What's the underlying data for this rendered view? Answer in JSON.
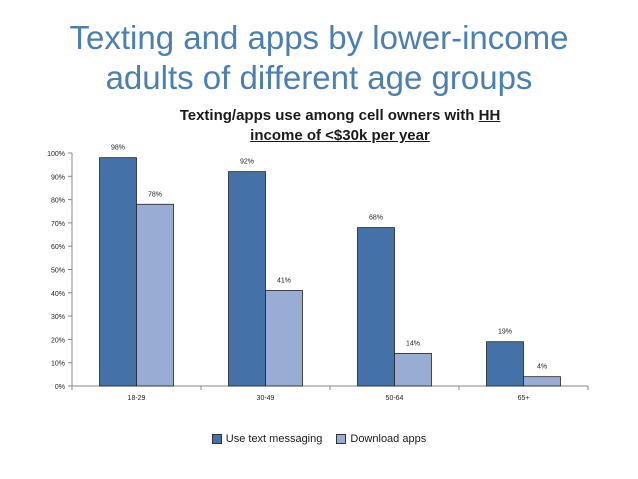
{
  "slide": {
    "title_line1": "Texting and apps by lower-income",
    "title_line2": "adults of different age groups"
  },
  "chart_data": {
    "type": "bar",
    "title_part1": "Texting/apps use among cell owners with ",
    "title_underlined": "HH",
    "title_part2": "income of <$30k per year",
    "categories": [
      "18-29",
      "30-49",
      "50-64",
      "65+"
    ],
    "series": [
      {
        "name": "Use text messaging",
        "values": [
          98,
          92,
          68,
          19
        ],
        "color": "#4472a8"
      },
      {
        "name": "Download apps",
        "values": [
          78,
          41,
          14,
          4
        ],
        "color": "#98acd4"
      }
    ],
    "ylim": [
      0,
      100
    ],
    "yticks": [
      "0%",
      "10%",
      "20%",
      "30%",
      "40%",
      "50%",
      "60%",
      "70%",
      "80%",
      "90%",
      "100%"
    ],
    "value_suffix": "%",
    "grid": false,
    "legend_position": "bottom"
  }
}
